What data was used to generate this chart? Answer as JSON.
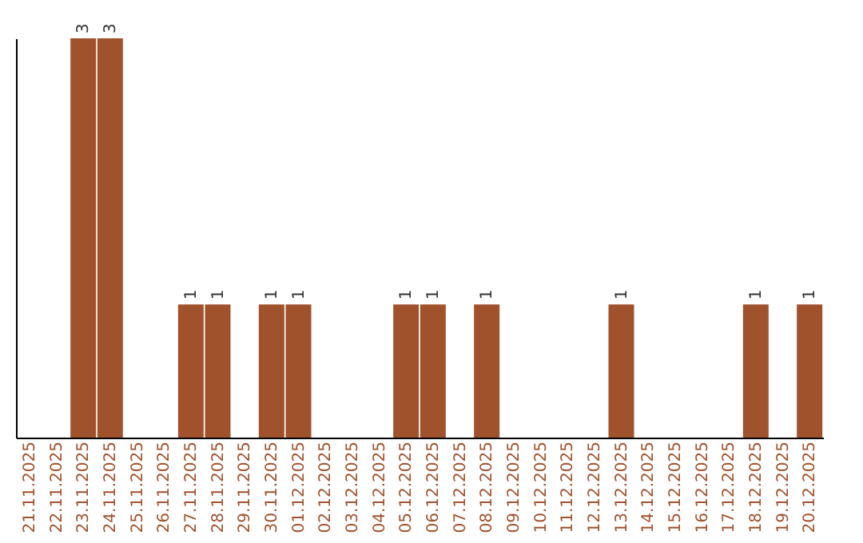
{
  "chart_data": {
    "type": "bar",
    "categories": [
      "21.11.2025",
      "22.11.2025",
      "23.11.2025",
      "24.11.2025",
      "25.11.2025",
      "26.11.2025",
      "27.11.2025",
      "28.11.2025",
      "29.11.2025",
      "30.11.2025",
      "01.12.2025",
      "02.12.2025",
      "03.12.2025",
      "04.12.2025",
      "05.12.2025",
      "06.12.2025",
      "07.12.2025",
      "08.12.2025",
      "09.12.2025",
      "10.12.2025",
      "11.12.2025",
      "12.12.2025",
      "13.12.2025",
      "14.12.2025",
      "15.12.2025",
      "16.12.2025",
      "17.12.2025",
      "18.12.2025",
      "19.12.2025",
      "20.12.2025"
    ],
    "values": [
      0,
      0,
      3,
      3,
      0,
      0,
      1,
      1,
      0,
      1,
      1,
      0,
      0,
      0,
      1,
      1,
      0,
      1,
      0,
      0,
      0,
      0,
      1,
      0,
      0,
      0,
      0,
      1,
      0,
      1
    ],
    "value_labels": [
      null,
      null,
      "3",
      "3",
      null,
      null,
      "1",
      "1",
      null,
      "1",
      "1",
      null,
      null,
      null,
      "1",
      "1",
      null,
      "1",
      null,
      null,
      null,
      null,
      "1",
      null,
      null,
      null,
      null,
      "1",
      null,
      "1"
    ],
    "color": "#a0522d",
    "ylim": [
      0,
      3
    ],
    "tick_labels": "x",
    "grid": false
  }
}
